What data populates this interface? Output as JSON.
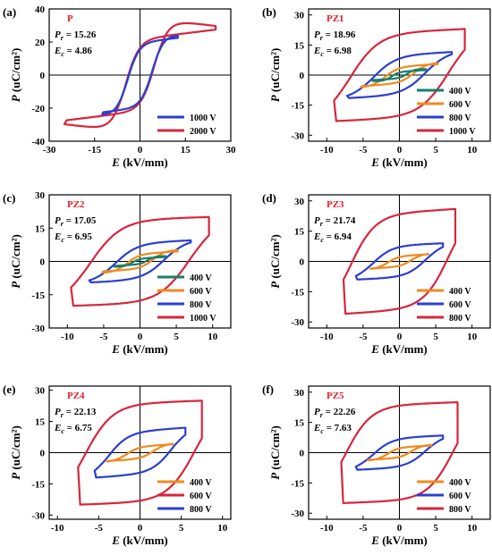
{
  "chart_data": [
    {
      "type": "line",
      "panel": "(a)",
      "sample": "P",
      "pr": "15.26",
      "ec": "4.86",
      "xlabel": "E (kV/mm)",
      "ylabel": "P (uC/cm²)",
      "xlim": [
        -30,
        30
      ],
      "ylim": [
        -40,
        40
      ],
      "xticks": [
        -30,
        -15,
        0,
        15,
        30
      ],
      "yticks": [
        -40,
        -20,
        0,
        20,
        40
      ],
      "series": [
        {
          "name": "1000 V",
          "color": "#2a3fd1",
          "amplitude_E": 12.5,
          "saturation_P": 22.5,
          "remanent_P": 14.5,
          "coercive_E": 4.2
        },
        {
          "name": "2000 V",
          "color": "#d7263d",
          "amplitude_E": 25.0,
          "saturation_P": 27.5,
          "remanent_P": 15.3,
          "coercive_E": 4.9
        }
      ],
      "legend_labels": [
        "1000 V",
        "2000 V"
      ]
    },
    {
      "type": "line",
      "panel": "(b)",
      "sample": "PZ1",
      "pr": "18.96",
      "ec": "6.98",
      "xlabel": "E (kV/mm)",
      "ylabel": "P (uC/cm²)",
      "xlim": [
        -12.5,
        12.5
      ],
      "ylim": [
        -33,
        33
      ],
      "xticks": [
        -10,
        -5,
        0,
        5,
        10
      ],
      "yticks": [
        -30,
        -15,
        0,
        15,
        30
      ],
      "series": [
        {
          "name": "400 V",
          "color": "#1a7f6b",
          "amplitude_E": 3.7,
          "saturation_P": 2.5,
          "remanent_P": 1.0,
          "coercive_E": 1.2
        },
        {
          "name": "600 V",
          "color": "#f08a1e",
          "amplitude_E": 5.3,
          "saturation_P": 5.5,
          "remanent_P": 2.8,
          "coercive_E": 2.2
        },
        {
          "name": "800 V",
          "color": "#2a3fd1",
          "amplitude_E": 7.2,
          "saturation_P": 11.5,
          "remanent_P": 7.5,
          "coercive_E": 3.8
        },
        {
          "name": "1000 V",
          "color": "#d7263d",
          "amplitude_E": 9.0,
          "saturation_P": 23.0,
          "remanent_P": 19.0,
          "coercive_E": 7.0
        }
      ],
      "legend_labels": [
        "400 V",
        "600 V",
        "800 V",
        "1000 V"
      ]
    },
    {
      "type": "line",
      "panel": "(c)",
      "sample": "PZ2",
      "pr": "17.05",
      "ec": "6.95",
      "xlabel": "E (kV/mm)",
      "ylabel": "P (uC/cm²)",
      "xlim": [
        -12.5,
        12.5
      ],
      "ylim": [
        -30,
        30
      ],
      "xticks": [
        -10,
        -5,
        0,
        5,
        10
      ],
      "yticks": [
        -30,
        -15,
        0,
        15,
        30
      ],
      "series": [
        {
          "name": "400 V",
          "color": "#1a7f6b",
          "amplitude_E": 3.6,
          "saturation_P": 2.0,
          "remanent_P": 0.8,
          "coercive_E": 1.2
        },
        {
          "name": "600 V",
          "color": "#f08a1e",
          "amplitude_E": 5.2,
          "saturation_P": 4.5,
          "remanent_P": 2.2,
          "coercive_E": 2.0
        },
        {
          "name": "800 V",
          "color": "#2a3fd1",
          "amplitude_E": 7.0,
          "saturation_P": 9.5,
          "remanent_P": 6.2,
          "coercive_E": 3.6
        },
        {
          "name": "1000 V",
          "color": "#d7263d",
          "amplitude_E": 9.5,
          "saturation_P": 20.0,
          "remanent_P": 17.0,
          "coercive_E": 7.0
        }
      ],
      "legend_labels": [
        "400 V",
        "600 V",
        "800 V",
        "1000 V"
      ]
    },
    {
      "type": "line",
      "panel": "(d)",
      "sample": "PZ3",
      "pr": "21.74",
      "ec": "6.94",
      "xlabel": "E (kV/mm)",
      "ylabel": "P (uC/cm²)",
      "xlim": [
        -12.5,
        12.5
      ],
      "ylim": [
        -33,
        33
      ],
      "xticks": [
        -10,
        -5,
        0,
        5,
        10
      ],
      "yticks": [
        -30,
        -15,
        0,
        15,
        30
      ],
      "series": [
        {
          "name": "400 V",
          "color": "#f08a1e",
          "amplitude_E": 4.0,
          "saturation_P": 3.5,
          "remanent_P": 1.8,
          "coercive_E": 1.8
        },
        {
          "name": "600 V",
          "color": "#2a3fd1",
          "amplitude_E": 6.0,
          "saturation_P": 9.0,
          "remanent_P": 6.5,
          "coercive_E": 3.8
        },
        {
          "name": "800 V",
          "color": "#d7263d",
          "amplitude_E": 7.7,
          "saturation_P": 26.0,
          "remanent_P": 21.7,
          "coercive_E": 6.9
        }
      ],
      "legend_labels": [
        "400 V",
        "600 V",
        "800 V"
      ]
    },
    {
      "type": "line",
      "panel": "(e)",
      "sample": "PZ4",
      "pr": "22.13",
      "ec": "6.75",
      "xlabel": "E (kV/mm)",
      "ylabel": "P (uC/cm²)",
      "xlim": [
        -11,
        11
      ],
      "ylim": [
        -32,
        32
      ],
      "xticks": [
        -10,
        -5,
        0,
        5,
        10
      ],
      "yticks": [
        -30,
        -15,
        0,
        15,
        30
      ],
      "series": [
        {
          "name": "400 V",
          "color": "#f08a1e",
          "amplitude_E": 4.0,
          "saturation_P": 4.0,
          "remanent_P": 2.0,
          "coercive_E": 1.8
        },
        {
          "name": "600 V",
          "color": "#d7263d",
          "amplitude_E": 7.5,
          "saturation_P": 25.0,
          "remanent_P": 22.1,
          "coercive_E": 6.8
        },
        {
          "name": "800 V",
          "color": "#2a3fd1",
          "amplitude_E": 5.5,
          "saturation_P": 12.0,
          "remanent_P": 8.5,
          "coercive_E": 4.0
        }
      ],
      "legend_labels": [
        "400 V",
        "600 V",
        "800 V"
      ]
    },
    {
      "type": "line",
      "panel": "(f)",
      "sample": "PZ5",
      "pr": "22.26",
      "ec": "7.63",
      "xlabel": "E (kV/mm)",
      "ylabel": "P (uC/cm²)",
      "xlim": [
        -12.5,
        12.5
      ],
      "ylim": [
        -33,
        33
      ],
      "xticks": [
        -10,
        -5,
        0,
        5,
        10
      ],
      "yticks": [
        -30,
        -15,
        0,
        15,
        30
      ],
      "series": [
        {
          "name": "400 V",
          "color": "#f08a1e",
          "amplitude_E": 4.4,
          "saturation_P": 3.5,
          "remanent_P": 1.8,
          "coercive_E": 1.8
        },
        {
          "name": "600 V",
          "color": "#2a3fd1",
          "amplitude_E": 6.0,
          "saturation_P": 8.5,
          "remanent_P": 6.0,
          "coercive_E": 3.8
        },
        {
          "name": "800 V",
          "color": "#d7263d",
          "amplitude_E": 8.0,
          "saturation_P": 25.0,
          "remanent_P": 22.3,
          "coercive_E": 7.6
        }
      ],
      "legend_labels": [
        "400 V",
        "600 V",
        "800 V"
      ]
    }
  ]
}
